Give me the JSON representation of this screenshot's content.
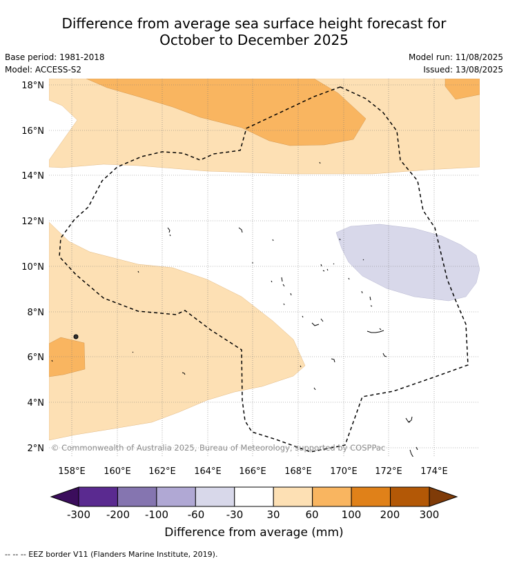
{
  "title": {
    "line1": "Difference from average sea surface height forecast for",
    "line2": "October to December 2025"
  },
  "meta": {
    "base_period": "Base period: 1981-2018",
    "model": "Model: ACCESS-S2",
    "model_run": "Model run: 11/08/2025",
    "issued": "Issued: 13/08/2025"
  },
  "map": {
    "lat_labels": [
      "18°N",
      "16°N",
      "14°N",
      "12°N",
      "10°N",
      "8°N",
      "6°N",
      "4°N",
      "2°N"
    ],
    "lon_labels": [
      "158°E",
      "160°E",
      "162°E",
      "164°E",
      "166°E",
      "168°E",
      "170°E",
      "172°E",
      "174°E"
    ],
    "copyright": "© Commonwealth of Australia 2025, Bureau of Meteorology, supported by COSPPac",
    "grid": "dotted",
    "fill_colors": {
      "light_orange": "#fde0b4",
      "orange": "#f9b560",
      "lavender": "#d8d8ea"
    }
  },
  "colorbar": {
    "ticks": [
      "-300",
      "-200",
      "-100",
      "-60",
      "-30",
      "30",
      "60",
      "100",
      "200",
      "300"
    ],
    "colors": [
      "#3b0d5c",
      "#5a2a90",
      "#8575b0",
      "#b0a8d4",
      "#d8d8ea",
      "#ffffff",
      "#fde0b4",
      "#f9b560",
      "#e08119",
      "#b35806",
      "#7f3b08"
    ],
    "label": "Difference from average (mm)"
  },
  "footnote": "--  --  -- EEZ border V11 (Flanders Marine Institute, 2019)."
}
